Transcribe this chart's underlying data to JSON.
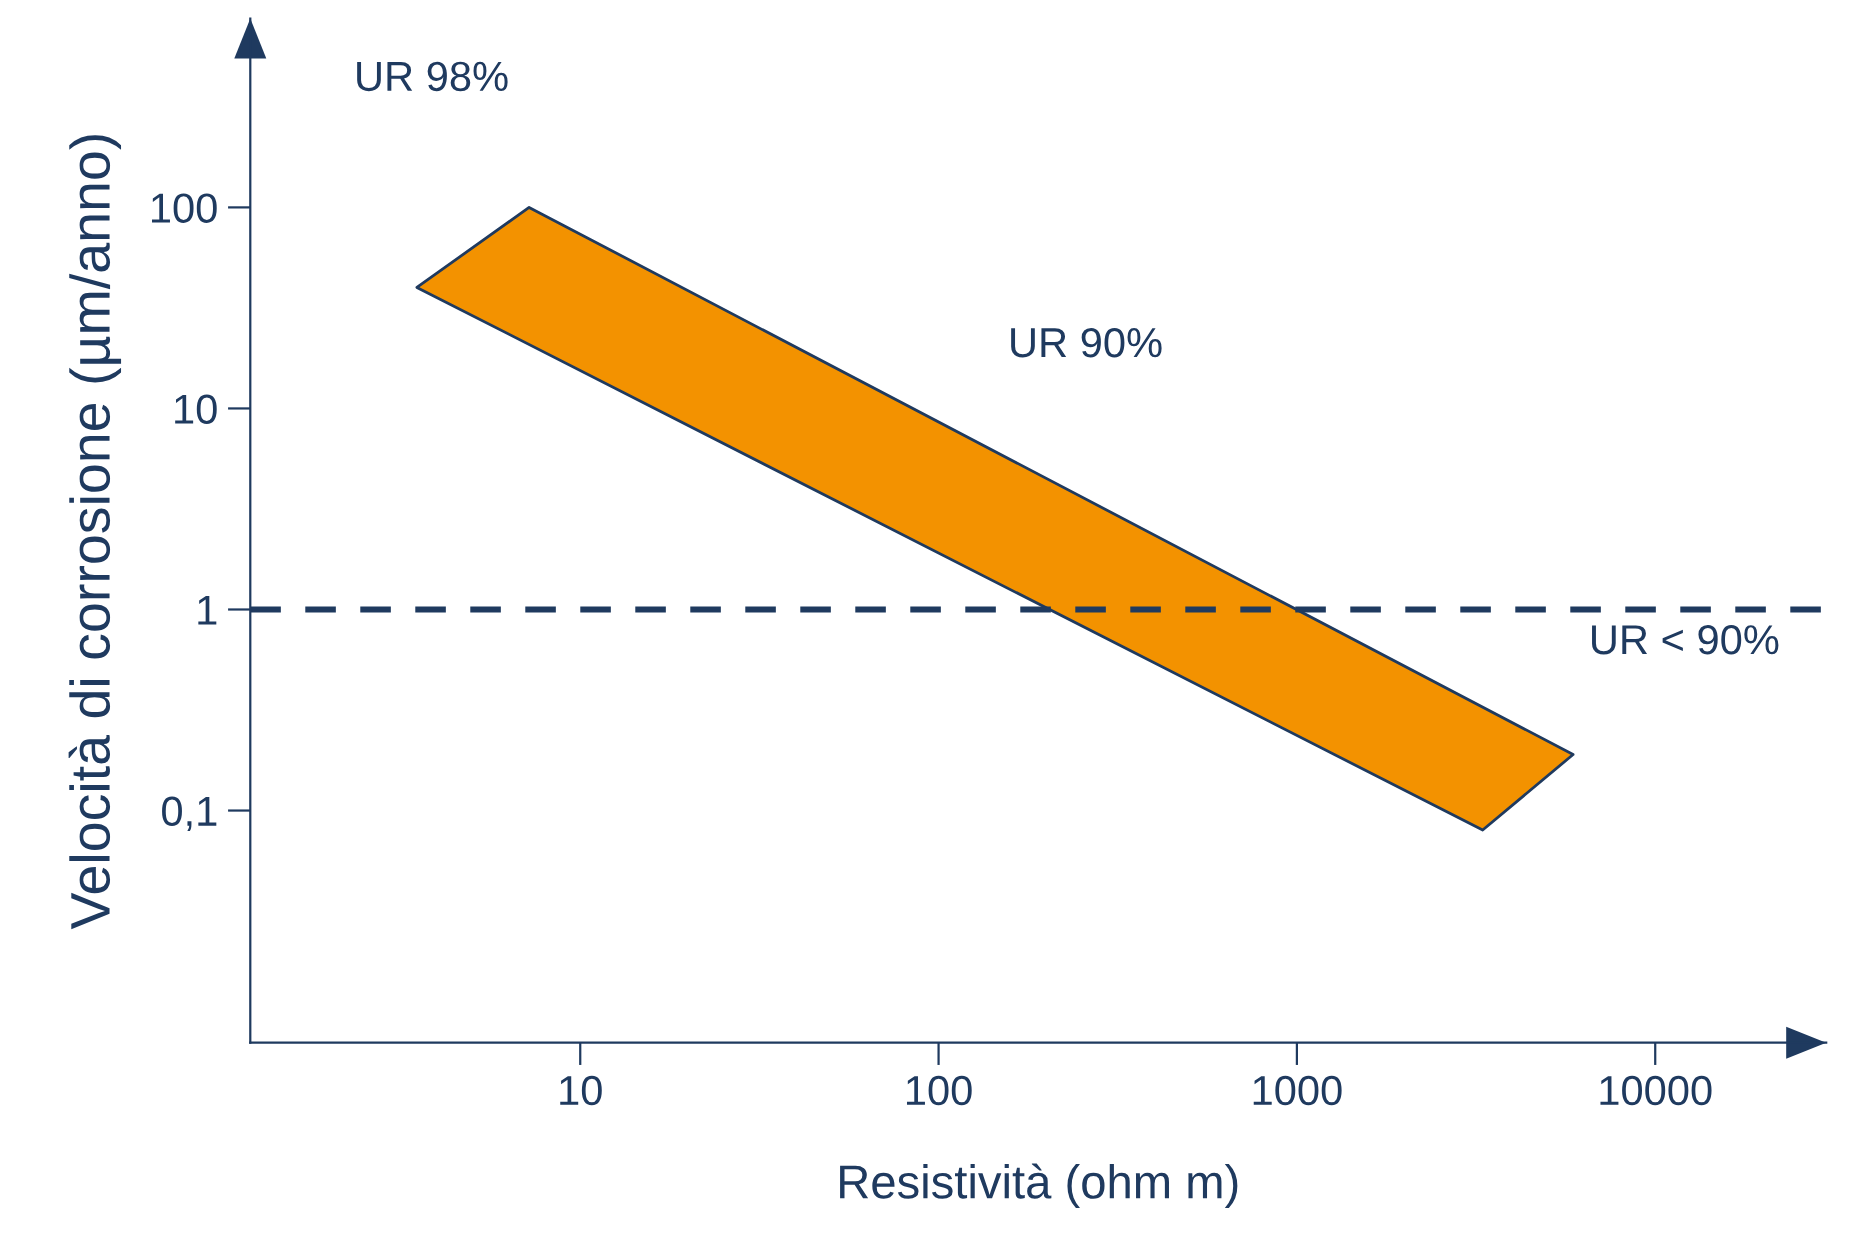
{
  "chart_data": {
    "type": "area",
    "xlabel": "Resistività (ohm m)",
    "ylabel": "Velocità di corrosione (µm/anno)",
    "log": "xy",
    "xlim": [
      1.2,
      30000
    ],
    "ylim": [
      0.007,
      870
    ],
    "xticks": [
      10,
      100,
      1000,
      10000
    ],
    "yticks": [
      {
        "value": 0.1,
        "label": "0,1"
      },
      1,
      10,
      100
    ],
    "series": [
      {
        "color": "#f39200",
        "x": [
          3.5,
          7.2,
          5900,
          3300
        ],
        "values": [
          40,
          100,
          0.19,
          0.08
        ]
      }
    ],
    "ref_lines": [
      {
        "axis": "y",
        "value": 1,
        "color": "#1f3a5f",
        "line_style": "dashed"
      }
    ],
    "annotations": [
      "UR 98%",
      "UR 90%",
      "UR < 90%"
    ],
    "grid": false,
    "legend": false
  }
}
